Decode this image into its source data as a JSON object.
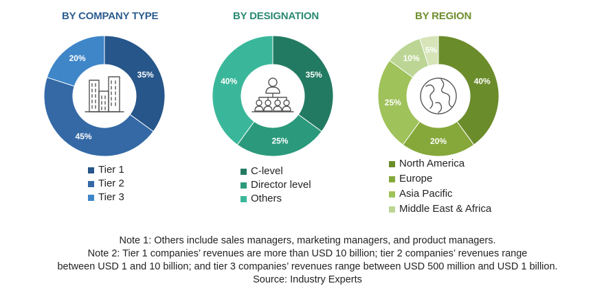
{
  "chart_data": [
    {
      "type": "pie",
      "title": "BY COMPANY TYPE",
      "icon": "buildings-icon",
      "slices": [
        {
          "name": "Tier 1",
          "value": 35,
          "label": "35%",
          "color": "#26568a"
        },
        {
          "name": "Tier 2",
          "value": 45,
          "label": "45%",
          "color": "#3469a6"
        },
        {
          "name": "Tier 3",
          "value": 20,
          "label": "20%",
          "color": "#3f86c9"
        }
      ],
      "start_angle_deg": 0,
      "legend_position": "bottom"
    },
    {
      "type": "pie",
      "title": "BY DESIGNATION",
      "icon": "org-hierarchy-icon",
      "slices": [
        {
          "name": "C-level",
          "value": 35,
          "label": "35%",
          "color": "#237a62"
        },
        {
          "name": "Director level",
          "value": 25,
          "label": "25%",
          "color": "#2b9a7c"
        },
        {
          "name": "Others",
          "value": 40,
          "label": "40%",
          "color": "#3ab79a"
        }
      ],
      "start_angle_deg": 0,
      "legend_position": "bottom"
    },
    {
      "type": "pie",
      "title": "BY REGION",
      "icon": "globe-icon",
      "slices": [
        {
          "name": "North America",
          "value": 40,
          "label": "40%",
          "color": "#6b8c2b"
        },
        {
          "name": "Europe",
          "value": 20,
          "label": "20%",
          "color": "#86a83a"
        },
        {
          "name": "Asia Pacific",
          "value": 25,
          "label": "25%",
          "color": "#9fc25a"
        },
        {
          "name": "Middle East & Africa",
          "value": 10,
          "label": "10%",
          "color": "#bcd594"
        },
        {
          "name": "",
          "value": 5,
          "label": "5%",
          "color": "#d6e4b8"
        }
      ],
      "start_angle_deg": 0,
      "legend_position": "bottom"
    }
  ],
  "notes": {
    "note1": "Note 1: Others include sales managers, marketing managers, and product managers.",
    "note2_line1": "Note 2: Tier 1 companies’ revenues are more than USD 10 billion; tier 2 companies’ revenues range",
    "note2_line2": "between USD 1 and 10 billion; and tier 3 companies’ revenues range between USD 500 million and USD 1 billion.",
    "source": "Source: Industry Experts"
  }
}
